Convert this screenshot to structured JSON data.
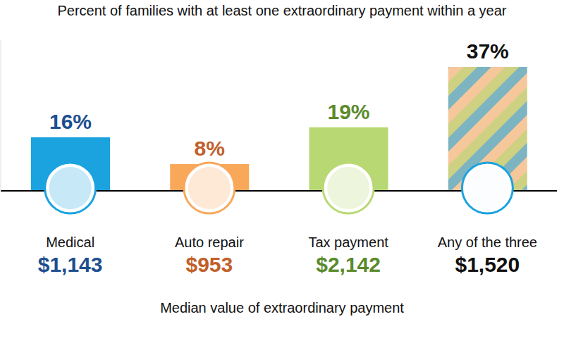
{
  "chart_data": {
    "type": "bar",
    "title": "Percent of families with at least one extraordinary payment within a year",
    "categories": [
      "Medical",
      "Auto repair",
      "Tax payment",
      "Any of the three"
    ],
    "values": [
      16,
      8,
      19,
      37
    ],
    "value_labels": [
      "16%",
      "8%",
      "19%",
      "37%"
    ],
    "data_labels": true,
    "colors": [
      "#1aa3df",
      "#f9a85a",
      "#b8d873",
      "#f6c79b"
    ],
    "ylim": [
      0,
      45
    ],
    "yticks": [],
    "tick_labels": false,
    "grid": false,
    "xlabel": "Median value of extraordinary payment",
    "median_value_labels": [
      "$1,143",
      "$953",
      "$2,142",
      "$1,520"
    ]
  }
}
